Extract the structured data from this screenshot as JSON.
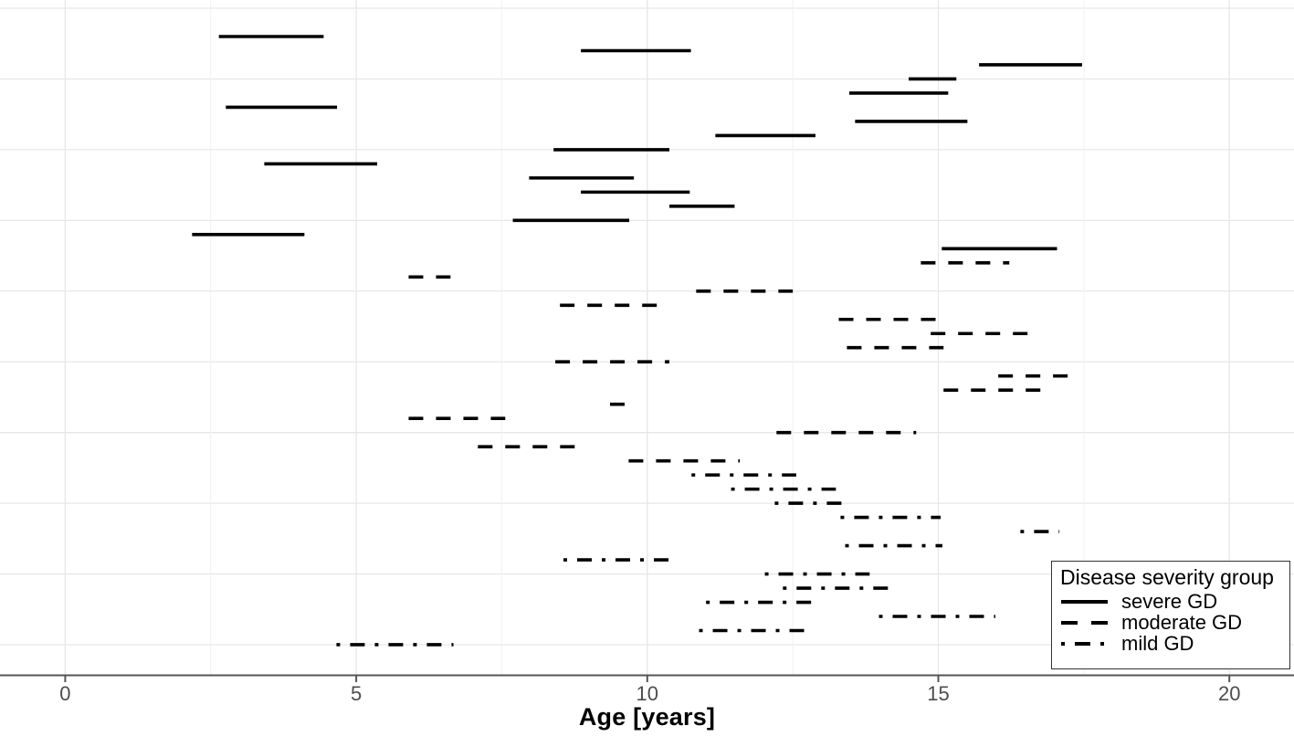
{
  "chart_data": {
    "type": "segment-ranges",
    "title": "",
    "xlabel": "Age [years]",
    "ylabel": "",
    "xlim": [
      -1.1,
      21.1
    ],
    "x_ticks": [
      0,
      5,
      10,
      15,
      20
    ],
    "x_minor_ticks": [
      2.5,
      7.5,
      12.5,
      17.5
    ],
    "n_rows": 44,
    "grid_rows": [
      -1,
      4,
      9,
      14,
      19,
      24,
      29,
      34,
      39,
      44
    ],
    "grid": "on",
    "legend": {
      "title": "Disease severity group",
      "position": "bottom-right",
      "entries": [
        {
          "label": "severe GD",
          "pattern": "solid"
        },
        {
          "label": "moderate GD",
          "pattern": "dashed"
        },
        {
          "label": "mild GD",
          "pattern": "dash-dot"
        }
      ]
    },
    "series": [
      {
        "name": "severe GD",
        "pattern": "solid",
        "color": "#000000",
        "segments": [
          [
            1,
            2.64,
            4.44
          ],
          [
            2,
            8.86,
            10.75
          ],
          [
            3,
            15.7,
            17.47
          ],
          [
            4,
            14.49,
            15.31
          ],
          [
            5,
            13.47,
            15.17
          ],
          [
            6,
            2.76,
            4.67
          ],
          [
            7,
            13.57,
            15.5
          ],
          [
            8,
            11.17,
            12.89
          ],
          [
            9,
            8.39,
            10.38
          ],
          [
            10,
            3.42,
            5.36
          ],
          [
            11,
            7.97,
            9.77
          ],
          [
            12,
            8.86,
            10.73
          ],
          [
            13,
            10.38,
            11.5
          ],
          [
            14,
            7.69,
            9.69
          ],
          [
            15,
            2.18,
            4.11
          ],
          [
            16,
            15.06,
            17.04
          ]
        ]
      },
      {
        "name": "moderate GD",
        "pattern": "dashed",
        "color": "#000000",
        "segments": [
          [
            17,
            14.7,
            16.22
          ],
          [
            18,
            5.9,
            6.62
          ],
          [
            19,
            10.84,
            12.5
          ],
          [
            20,
            8.5,
            10.21
          ],
          [
            21,
            13.29,
            14.96
          ],
          [
            22,
            14.87,
            16.55
          ],
          [
            23,
            13.43,
            15.09
          ],
          [
            24,
            8.42,
            10.38
          ],
          [
            25,
            16.03,
            17.25
          ],
          [
            26,
            15.09,
            16.82
          ],
          [
            27,
            9.36,
            9.63
          ],
          [
            28,
            5.9,
            7.56
          ],
          [
            29,
            12.22,
            14.62
          ],
          [
            30,
            7.09,
            8.8
          ],
          [
            31,
            9.68,
            11.59
          ]
        ]
      },
      {
        "name": "mild GD",
        "pattern": "dash-dot",
        "color": "#000000",
        "segments": [
          [
            32,
            10.76,
            12.56
          ],
          [
            33,
            11.44,
            13.24
          ],
          [
            34,
            12.19,
            13.49
          ],
          [
            35,
            13.32,
            15.04
          ],
          [
            36,
            16.41,
            17.08
          ],
          [
            37,
            13.4,
            15.07
          ],
          [
            38,
            8.56,
            10.38
          ],
          [
            39,
            12.02,
            13.82
          ],
          [
            40,
            12.33,
            14.15
          ],
          [
            41,
            11.01,
            12.82
          ],
          [
            42,
            13.98,
            15.98
          ],
          [
            43,
            10.89,
            12.74
          ],
          [
            44,
            4.66,
            6.67
          ]
        ]
      }
    ],
    "style": {
      "background": "#ffffff",
      "segment_color": "#000000",
      "grid_major_color": "#e7e7e7",
      "grid_minor_color": "#f1f1f1",
      "axis_line_color": "#555555",
      "tick_label_color": "#4d4d4d"
    }
  }
}
